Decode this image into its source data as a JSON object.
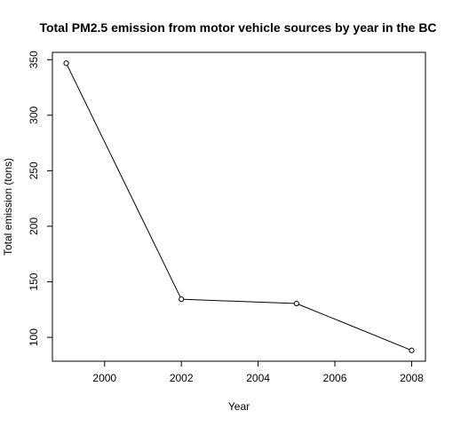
{
  "chart_data": {
    "type": "line",
    "title": "Total PM2.5 emission from motor vehicle sources by year in the BC",
    "xlabel": "Year",
    "ylabel": "Total emission (tons)",
    "x": [
      1999,
      2002,
      2005,
      2008
    ],
    "series": [
      {
        "values": [
          346.82,
          134.31,
          130.43,
          88.28
        ]
      }
    ],
    "xlim": [
      1998.64,
      2008.36
    ],
    "ylim": [
      78.5,
      356.6
    ],
    "xticks": [
      2000,
      2002,
      2004,
      2006,
      2008
    ],
    "yticks": [
      100,
      150,
      200,
      250,
      300,
      350
    ],
    "xtick_labels": [
      "2000",
      "2002",
      "2004",
      "2006",
      "2008"
    ],
    "ytick_labels": [
      "100",
      "150",
      "200",
      "250",
      "300",
      "350"
    ],
    "grid": false,
    "legend": "none",
    "marker": "open-circle",
    "line_color": "#000000"
  }
}
